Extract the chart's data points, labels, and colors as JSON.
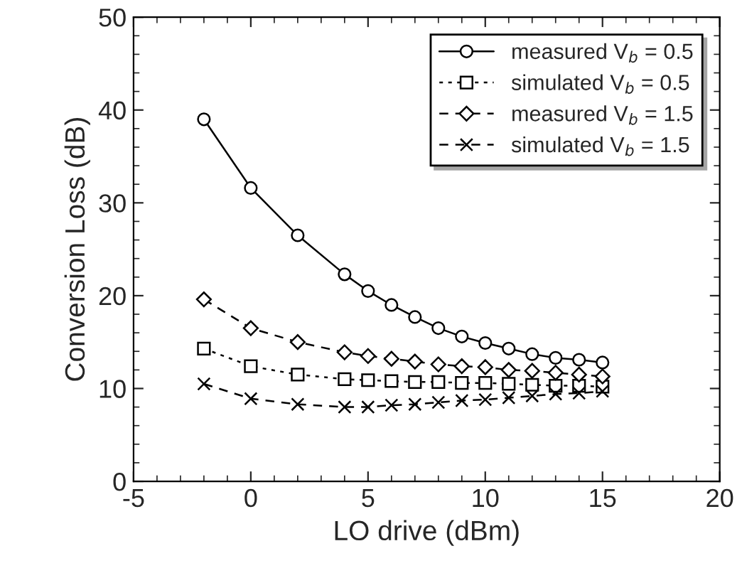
{
  "chart_data": {
    "type": "line",
    "xlabel": "LO drive (dBm)",
    "ylabel": "Conversion Loss (dB)",
    "x": [
      -2,
      0,
      2,
      4,
      5,
      6,
      7,
      8,
      9,
      10,
      11,
      12,
      13,
      14,
      15
    ],
    "series": [
      {
        "name": "measured V$_{b}$ = 0.5",
        "color": "#000000",
        "marker": "circle",
        "line_style": "solid",
        "values": [
          39,
          31.6,
          26.5,
          22.3,
          20.5,
          19,
          17.7,
          16.5,
          15.6,
          14.9,
          14.3,
          13.7,
          13.3,
          13.1,
          12.8
        ]
      },
      {
        "name": "simulated V$_{b}$ = 0.5",
        "color": "#000000",
        "marker": "square",
        "line_style": "dotted",
        "values": [
          14.3,
          12.4,
          11.5,
          11.0,
          10.9,
          10.8,
          10.7,
          10.7,
          10.6,
          10.6,
          10.5,
          10.4,
          10.3,
          10.3,
          10.2
        ]
      },
      {
        "name": "measured V$_{b}$ = 1.5",
        "color": "#000000",
        "marker": "diamond",
        "line_style": "dashed",
        "values": [
          19.6,
          16.5,
          15,
          13.9,
          13.5,
          13.2,
          12.9,
          12.6,
          12.4,
          12.3,
          12.0,
          11.9,
          11.7,
          11.5,
          11.3
        ]
      },
      {
        "name": "simulated V$_{b}$ = 1.5",
        "color": "#000000",
        "marker": "cross",
        "line_style": "dashed",
        "values": [
          10.5,
          8.9,
          8.3,
          8.0,
          8.0,
          8.2,
          8.3,
          8.5,
          8.7,
          8.8,
          9.0,
          9.2,
          9.4,
          9.5,
          9.7
        ]
      }
    ],
    "xlim": [
      -5,
      20
    ],
    "xticks": [
      -5,
      0,
      5,
      10,
      15,
      20
    ],
    "ylim": [
      0,
      50
    ],
    "yticks": [
      0,
      10,
      20,
      30,
      40,
      50
    ],
    "grid": false,
    "legend": "top right"
  }
}
